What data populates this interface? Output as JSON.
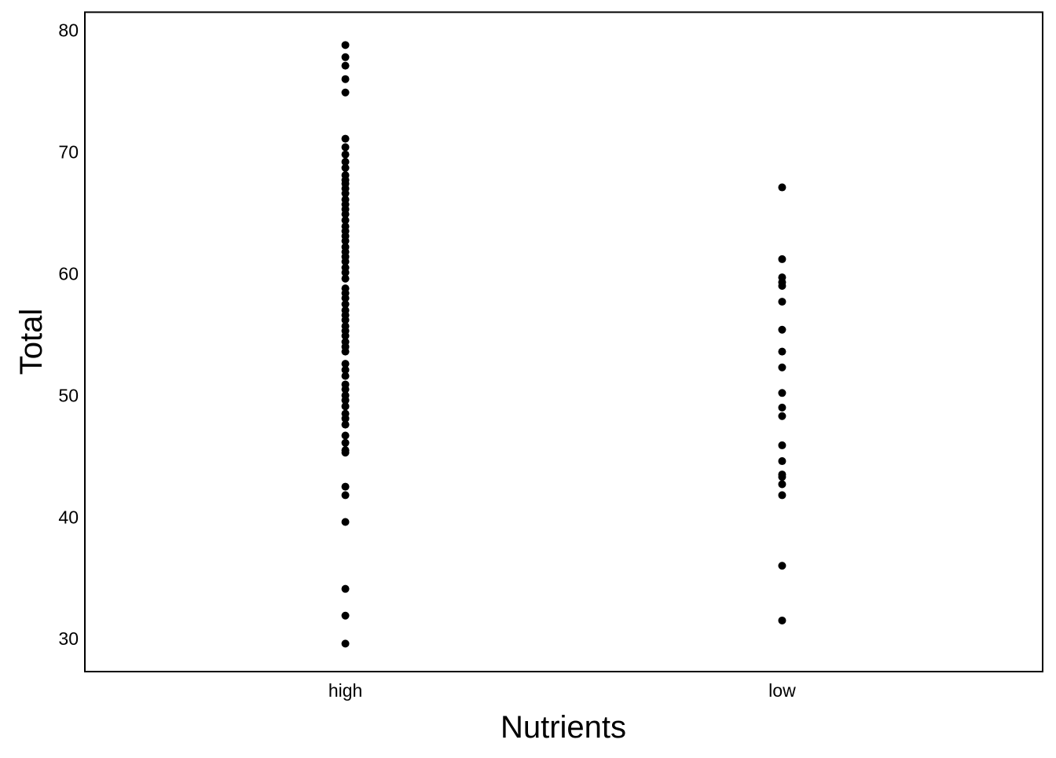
{
  "chart_data": {
    "type": "scatter",
    "xlabel": "Nutrients",
    "ylabel": "Total",
    "categories": [
      "high",
      "low"
    ],
    "ylim": [
      27.3,
      81.5
    ],
    "y_ticks": [
      30,
      40,
      50,
      60,
      70,
      80
    ],
    "grid": false,
    "point_color": "#000000",
    "series": [
      {
        "category": "high",
        "values": [
          78.8,
          77.8,
          77.1,
          76.0,
          74.9,
          71.1,
          70.4,
          69.8,
          69.2,
          68.7,
          68.1,
          67.7,
          67.4,
          67.0,
          66.6,
          66.1,
          65.7,
          65.3,
          64.9,
          64.4,
          63.9,
          63.5,
          63.1,
          62.7,
          62.2,
          61.8,
          61.4,
          61.0,
          60.5,
          60.1,
          59.6,
          58.8,
          58.4,
          58.0,
          57.5,
          57.0,
          56.6,
          56.2,
          55.7,
          55.3,
          54.9,
          54.4,
          54.0,
          53.6,
          52.6,
          52.1,
          51.6,
          50.9,
          50.5,
          50.0,
          49.6,
          49.1,
          48.5,
          48.1,
          47.6,
          46.7,
          46.1,
          45.5,
          45.3,
          42.5,
          41.8,
          39.6,
          34.1,
          31.9,
          29.6
        ]
      },
      {
        "category": "low",
        "values": [
          67.1,
          61.2,
          59.7,
          59.3,
          59.0,
          57.7,
          55.4,
          53.6,
          52.3,
          50.2,
          49.0,
          48.3,
          45.9,
          44.6,
          43.5,
          43.3,
          42.7,
          41.8,
          36.0,
          31.5
        ]
      }
    ]
  }
}
